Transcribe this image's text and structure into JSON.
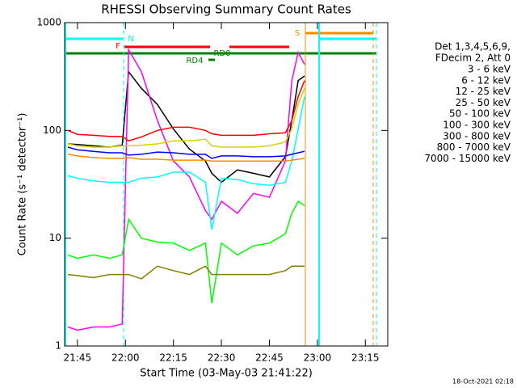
{
  "chart_data": {
    "type": "line",
    "title": "RHESSI Observing Summary Count Rates",
    "x_label": "Start Time (03-May-03 21:41:22)",
    "y_label": "Count Rate (s⁻¹ detector⁻¹)",
    "legend_title": [
      "Det 1,3,4,5,6,9,",
      "FDecim 2, Att 0"
    ],
    "footer": "18-Oct-2021 02:18",
    "annotations": [
      "N",
      "F",
      "RD0",
      "RD4",
      "S"
    ],
    "log_y": true,
    "xlim": [
      "21:41",
      "23:22"
    ],
    "xticks": [
      "21:45",
      "22:00",
      "22:15",
      "22:30",
      "22:45",
      "23:00",
      "23:15"
    ],
    "ylim": [
      1,
      1000
    ],
    "yticks": [
      1,
      10,
      100,
      1000
    ],
    "x": [
      "21:42",
      "21:45",
      "21:50",
      "21:55",
      "21:59",
      "22:01",
      "22:05",
      "22:10",
      "22:15",
      "22:20",
      "22:25",
      "22:27",
      "22:30",
      "22:35",
      "22:40",
      "22:45",
      "22:50",
      "22:52",
      "22:54",
      "22:56"
    ],
    "series": [
      {
        "name": "3 - 6 keV",
        "color": "#000000",
        "values": [
          75,
          74,
          72,
          70,
          73,
          350,
          246,
          174,
          103,
          67,
          52,
          40,
          33,
          43,
          40,
          37,
          57,
          123,
          290,
          320
        ]
      },
      {
        "name": "6 - 12 keV",
        "color": "#ff00ff",
        "values": [
          1.5,
          1.4,
          1.5,
          1.5,
          1.6,
          560,
          350,
          123,
          52,
          37,
          18,
          15,
          22,
          17,
          26,
          24,
          52,
          290,
          530,
          410
        ]
      },
      {
        "name": "12 - 25 keV",
        "color": "#00ff00",
        "values": [
          7,
          6.5,
          7,
          6.5,
          7,
          15,
          10,
          9.2,
          9,
          7.7,
          9,
          2.5,
          9,
          7,
          8.5,
          9,
          11,
          17,
          22,
          20
        ]
      },
      {
        "name": "25 - 50 keV",
        "color": "#00ffff",
        "values": [
          38,
          36,
          34,
          33,
          33,
          33,
          36,
          37,
          41,
          41,
          33,
          12,
          36,
          35,
          32,
          31,
          33,
          52,
          103,
          206
        ]
      },
      {
        "name": "50 - 100 keV",
        "color": "#d4d400",
        "values": [
          75,
          72,
          70,
          70,
          72,
          72,
          73,
          75,
          80,
          80,
          83,
          72,
          70,
          70,
          70,
          72,
          78,
          103,
          174,
          246
        ]
      },
      {
        "name": "100 - 300 keV",
        "color": "#ff0000",
        "values": [
          100,
          92,
          90,
          88,
          88,
          80,
          87,
          100,
          107,
          107,
          100,
          93,
          90,
          90,
          90,
          93,
          95,
          123,
          206,
          290
        ]
      },
      {
        "name": "300 - 800 keV",
        "color": "#0000ff",
        "values": [
          70,
          66,
          64,
          62,
          62,
          59,
          60,
          63,
          62,
          60,
          60,
          55,
          58,
          58,
          57,
          57,
          58,
          60,
          62,
          64
        ]
      },
      {
        "name": "800 - 7000 keV",
        "color": "#ff8c00",
        "values": [
          60,
          58,
          56,
          55,
          55,
          56,
          54,
          54,
          53,
          53,
          53,
          52,
          52,
          52,
          52,
          52,
          52,
          53,
          54,
          55
        ]
      },
      {
        "name": "7000 - 15000 keV",
        "color": "#808000",
        "values": [
          4.6,
          4.5,
          4.3,
          4.6,
          4.6,
          4.6,
          4.2,
          5.5,
          5,
          4.6,
          5.5,
          4.6,
          4.6,
          4.6,
          4.6,
          4.6,
          5,
          5.5,
          5.5,
          5.5
        ]
      }
    ]
  }
}
